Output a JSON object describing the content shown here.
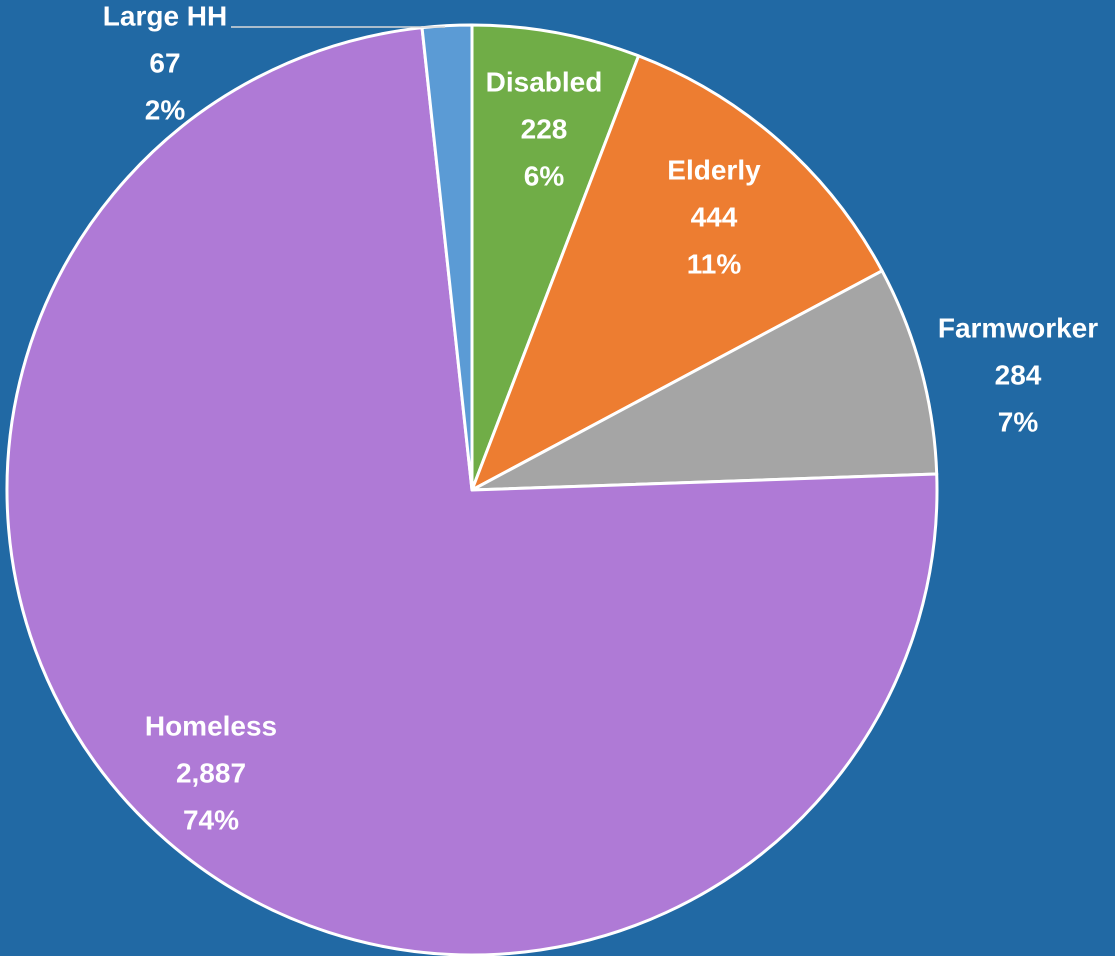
{
  "chart_data": {
    "type": "pie",
    "title": "",
    "background": "#2169A4",
    "slices": [
      {
        "label": "Disabled",
        "value": 228,
        "value_text": "228",
        "percent_text": "6%",
        "color": "#70AD47"
      },
      {
        "label": "Elderly",
        "value": 444,
        "value_text": "444",
        "percent_text": "11%",
        "color": "#ED7D31"
      },
      {
        "label": "Farmworker",
        "value": 284,
        "value_text": "284",
        "percent_text": "7%",
        "color": "#A5A5A5"
      },
      {
        "label": "Homeless",
        "value": 2887,
        "value_text": "2,887",
        "percent_text": "74%",
        "color": "#AF7AD6"
      },
      {
        "label": "Large HH",
        "value": 67,
        "value_text": "67",
        "percent_text": "2%",
        "color": "#5B9BD5"
      }
    ]
  }
}
